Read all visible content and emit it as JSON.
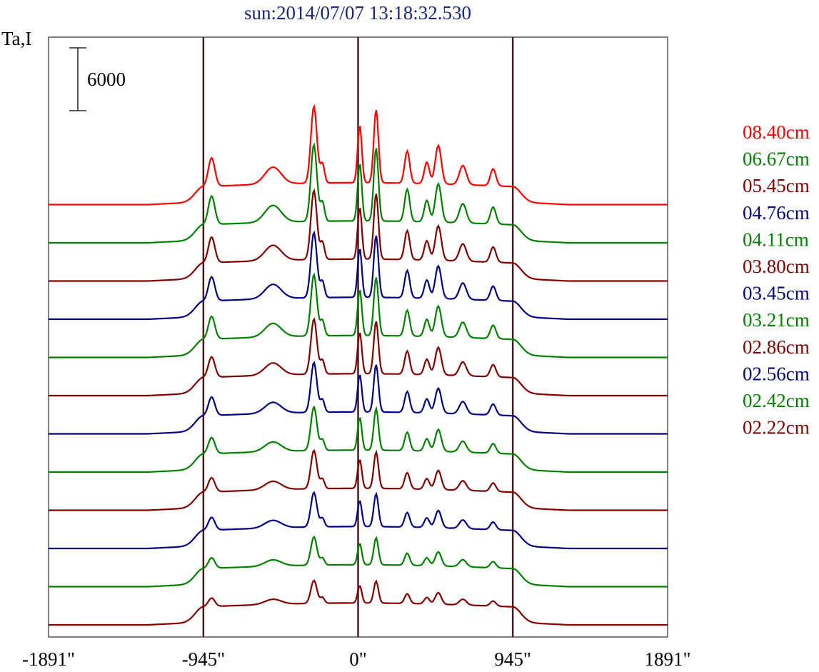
{
  "chart_data": {
    "type": "line",
    "title": "sun:2014/07/07 13:18:32.530",
    "ylabel": "Ta,I",
    "xlabel": "",
    "scale_bar": {
      "label": "6000",
      "value": 6000
    },
    "x_ticks": [
      {
        "value": -1891,
        "label": "-1891\""
      },
      {
        "value": -945,
        "label": "-945\""
      },
      {
        "value": 0,
        "label": "0\""
      },
      {
        "value": 945,
        "label": "945\""
      },
      {
        "value": 1891,
        "label": "1891\""
      }
    ],
    "xlim": [
      -1891,
      1891
    ],
    "vertical_lines": [
      -945,
      0,
      945
    ],
    "grid": false,
    "legend_position": "right",
    "profile_shape": {
      "disk_half_width": 945,
      "peaks": [
        {
          "x": -895,
          "height": 0.37,
          "width": 28
        },
        {
          "x": -520,
          "height": 0.22,
          "width": 70
        },
        {
          "x": -270,
          "height": 1.0,
          "width": 26
        },
        {
          "x": -218,
          "height": 0.25,
          "width": 18
        },
        {
          "x": 10,
          "height": 0.75,
          "width": 18
        },
        {
          "x": 110,
          "height": 0.95,
          "width": 20
        },
        {
          "x": 300,
          "height": 0.42,
          "width": 22
        },
        {
          "x": 420,
          "height": 0.28,
          "width": 22
        },
        {
          "x": 490,
          "height": 0.5,
          "width": 26
        },
        {
          "x": 640,
          "height": 0.25,
          "width": 30
        },
        {
          "x": 825,
          "height": 0.22,
          "width": 24
        }
      ]
    },
    "series": [
      {
        "name": "08.40cm",
        "color": "#ff0000",
        "peak_scale": 1.0
      },
      {
        "name": "06.67cm",
        "color": "#008000",
        "peak_scale": 1.0
      },
      {
        "name": "05.45cm",
        "color": "#800000",
        "peak_scale": 0.9
      },
      {
        "name": "04.76cm",
        "color": "#000080",
        "peak_scale": 0.85
      },
      {
        "name": "04.11cm",
        "color": "#008000",
        "peak_scale": 0.8
      },
      {
        "name": "03.80cm",
        "color": "#800000",
        "peak_scale": 0.72
      },
      {
        "name": "03.45cm",
        "color": "#000080",
        "peak_scale": 0.65
      },
      {
        "name": "03.21cm",
        "color": "#008000",
        "peak_scale": 0.57
      },
      {
        "name": "02.86cm",
        "color": "#800000",
        "peak_scale": 0.5
      },
      {
        "name": "02.56cm",
        "color": "#000080",
        "peak_scale": 0.45
      },
      {
        "name": "02.42cm",
        "color": "#008000",
        "peak_scale": 0.37
      },
      {
        "name": "02.22cm",
        "color": "#800000",
        "peak_scale": 0.3
      }
    ]
  }
}
